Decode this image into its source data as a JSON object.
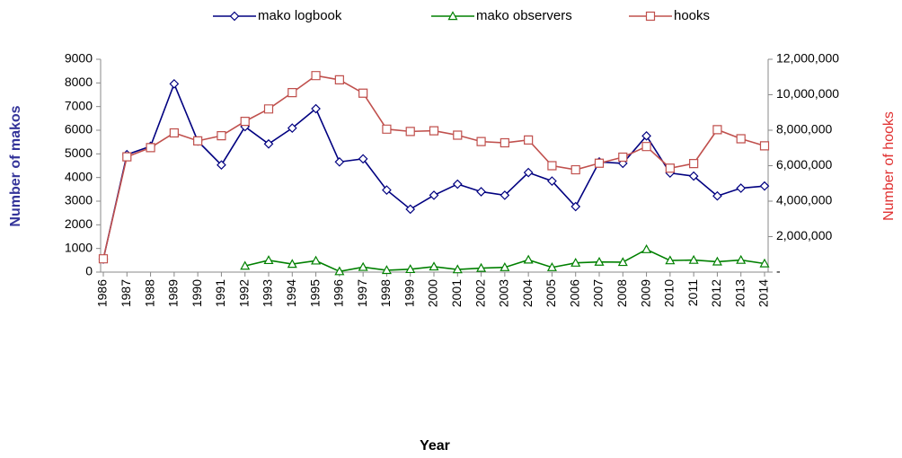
{
  "chart_data": {
    "type": "line",
    "x_title": "Year",
    "y_title": "Number of makos",
    "y2_title": "Number of hooks",
    "categories": [
      "1986",
      "1987",
      "1988",
      "1989",
      "1990",
      "1991",
      "1992",
      "1993",
      "1994",
      "1995",
      "1996",
      "1997",
      "1998",
      "1999",
      "2000",
      "2001",
      "2002",
      "2003",
      "2004",
      "2005",
      "2006",
      "2007",
      "2008",
      "2009",
      "2010",
      "2011",
      "2012",
      "2013",
      "2014"
    ],
    "series": [
      {
        "name": "mako logbook",
        "color": "#000080",
        "marker": "diamond",
        "values": [
          550,
          4970,
          5320,
          7960,
          5540,
          4530,
          6150,
          5420,
          6090,
          6910,
          4660,
          4790,
          3470,
          2660,
          3250,
          3720,
          3400,
          3250,
          4210,
          3850,
          2770,
          4660,
          4600,
          5760,
          4190,
          4060,
          3220,
          3550,
          3640
        ]
      },
      {
        "name": "mako observers",
        "color": "#008000",
        "marker": "triangle",
        "values": [
          null,
          null,
          null,
          null,
          null,
          null,
          260,
          500,
          340,
          480,
          30,
          210,
          80,
          120,
          230,
          110,
          170,
          200,
          520,
          200,
          390,
          430,
          420,
          960,
          490,
          510,
          440,
          510,
          360
        ]
      },
      {
        "name": "hooks",
        "color": "#c0504d",
        "marker": "square",
        "axis": "y2",
        "values": [
          750000,
          6500000,
          7020000,
          7850000,
          7400000,
          7690000,
          8500000,
          9200000,
          10120000,
          11080000,
          10840000,
          10090000,
          8060000,
          7930000,
          7970000,
          7720000,
          7360000,
          7290000,
          7450000,
          6000000,
          5770000,
          6140000,
          6480000,
          7080000,
          5860000,
          6120000,
          8030000,
          7520000,
          7120000
        ]
      }
    ],
    "ylim": [
      0,
      9000
    ],
    "yticks": [
      0,
      1000,
      2000,
      3000,
      4000,
      5000,
      6000,
      7000,
      8000,
      9000
    ],
    "y2lim": [
      0,
      12000000
    ],
    "y2ticks": [
      {
        "value": 0,
        "label": "-"
      },
      {
        "value": 2000000,
        "label": "2,000,000"
      },
      {
        "value": 4000000,
        "label": "4,000,000"
      },
      {
        "value": 6000000,
        "label": "6,000,000"
      },
      {
        "value": 8000000,
        "label": "8,000,000"
      },
      {
        "value": 10000000,
        "label": "10,000,000"
      },
      {
        "value": 12000000,
        "label": "12,000,000"
      }
    ],
    "grid": false,
    "legend": "top"
  }
}
